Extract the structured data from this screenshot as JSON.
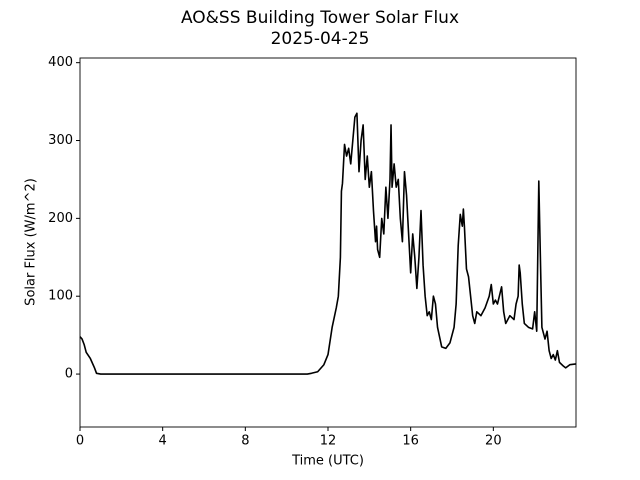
{
  "chart_data": {
    "type": "line",
    "title": "AO&SS Building Tower Solar Flux",
    "subtitle": "2025-04-25",
    "xlabel": "Time (UTC)",
    "ylabel": "Solar Flux (W/m^2)",
    "xlim": [
      0,
      24
    ],
    "ylim": [
      -68,
      406
    ],
    "xticks": [
      0,
      4,
      8,
      12,
      16,
      20
    ],
    "yticks": [
      0,
      100,
      200,
      300,
      400
    ],
    "series": [
      {
        "name": "Solar Flux",
        "color": "#000000",
        "x": [
          0,
          0.1,
          0.2,
          0.3,
          0.5,
          0.7,
          0.8,
          1.0,
          11.0,
          11.2,
          11.5,
          11.8,
          12.0,
          12.2,
          12.4,
          12.5,
          12.6,
          12.65,
          12.7,
          12.8,
          12.9,
          13.0,
          13.1,
          13.2,
          13.3,
          13.4,
          13.5,
          13.6,
          13.7,
          13.8,
          13.9,
          14.0,
          14.1,
          14.2,
          14.3,
          14.35,
          14.4,
          14.5,
          14.6,
          14.7,
          14.8,
          14.9,
          15.0,
          15.05,
          15.1,
          15.2,
          15.3,
          15.4,
          15.5,
          15.6,
          15.7,
          15.8,
          15.9,
          16.0,
          16.1,
          16.2,
          16.3,
          16.4,
          16.5,
          16.6,
          16.7,
          16.8,
          16.9,
          17.0,
          17.1,
          17.2,
          17.3,
          17.5,
          17.7,
          17.9,
          18.1,
          18.2,
          18.3,
          18.4,
          18.5,
          18.55,
          18.6,
          18.7,
          18.8,
          18.9,
          19.0,
          19.1,
          19.2,
          19.4,
          19.6,
          19.8,
          19.9,
          20.0,
          20.1,
          20.2,
          20.4,
          20.5,
          20.6,
          20.8,
          21.0,
          21.1,
          21.2,
          21.25,
          21.3,
          21.4,
          21.5,
          21.7,
          21.9,
          22.0,
          22.1,
          22.2,
          22.3,
          22.35,
          22.5,
          22.6,
          22.7,
          22.8,
          22.9,
          23.0,
          23.1,
          23.2,
          23.4,
          23.5,
          23.7,
          24.0
        ],
        "values": [
          48,
          45,
          38,
          28,
          20,
          8,
          1,
          0,
          0,
          1,
          3,
          12,
          25,
          60,
          85,
          100,
          150,
          235,
          245,
          295,
          280,
          290,
          270,
          300,
          330,
          335,
          260,
          300,
          320,
          250,
          280,
          240,
          260,
          210,
          170,
          190,
          160,
          150,
          200,
          180,
          240,
          200,
          250,
          320,
          240,
          270,
          240,
          250,
          200,
          170,
          260,
          230,
          180,
          130,
          180,
          150,
          110,
          150,
          210,
          140,
          100,
          75,
          80,
          70,
          100,
          90,
          60,
          35,
          33,
          40,
          60,
          90,
          165,
          205,
          190,
          212,
          190,
          135,
          125,
          100,
          75,
          65,
          80,
          75,
          85,
          100,
          115,
          90,
          95,
          90,
          112,
          80,
          65,
          75,
          70,
          90,
          100,
          140,
          130,
          90,
          65,
          60,
          58,
          80,
          55,
          248,
          120,
          60,
          45,
          55,
          30,
          20,
          25,
          18,
          30,
          15,
          10,
          8,
          12,
          13
        ]
      }
    ]
  }
}
